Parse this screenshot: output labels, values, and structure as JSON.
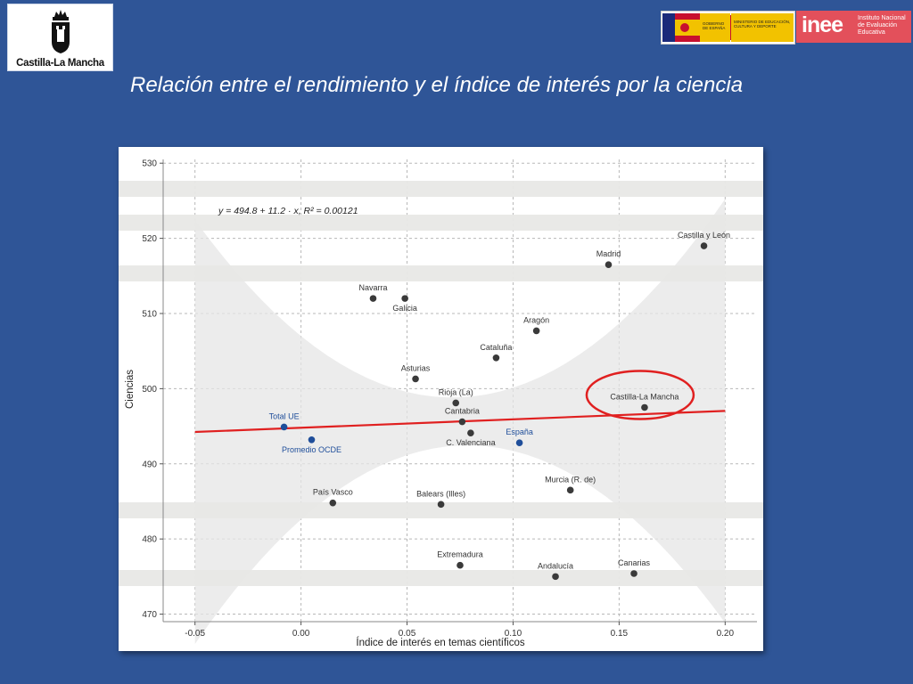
{
  "header": {
    "left_logo_text": "Castilla-La Mancha",
    "ministry_logo_text": [
      "GOBIERNO DE ESPAÑA",
      "MINISTERIO DE EDUCACIÓN, CULTURA Y DEPORTE"
    ],
    "inee_logo_letters": "inee",
    "inee_logo_text": [
      "Instituto Nacional",
      "de Evaluación",
      "Educativa"
    ]
  },
  "slide_title": "Relación entre el rendimiento y el índice de interés por la ciencia",
  "colors": {
    "background": "#2f5597",
    "regression_line": "#e02020",
    "point_region": "#3a3a3a",
    "point_aggregate": "#1f4e9a",
    "highlight_circle": "#e02020",
    "confidence_band": "#e5e5e5"
  },
  "chart_data": {
    "type": "scatter",
    "equation_label": "y = 494.8 + 11.2 · x,  R² = 0.00121",
    "xlabel": "Índice de interés en temas científicos",
    "ylabel": "Ciencias",
    "xlim": [
      -0.065,
      0.215
    ],
    "ylim": [
      469,
      530.5
    ],
    "xticks": [
      -0.05,
      0.0,
      0.05,
      0.1,
      0.15,
      0.2
    ],
    "xtick_labels": [
      "-0.05",
      "0.00",
      "0.05",
      "0.10",
      "0.15",
      "0.20"
    ],
    "yticks": [
      470,
      480,
      490,
      500,
      510,
      520,
      530
    ],
    "ytick_labels": [
      "470",
      "480",
      "490",
      "500",
      "510",
      "520",
      "530"
    ],
    "grid": true,
    "regression": {
      "intercept": 494.8,
      "slope": 11.2,
      "x_from": -0.05,
      "x_to": 0.2
    },
    "highlight": "Castilla-La Mancha",
    "points": [
      {
        "label": "Castilla y León",
        "x": 0.19,
        "y": 519.0,
        "group": "region",
        "label_side": "above"
      },
      {
        "label": "Madrid",
        "x": 0.145,
        "y": 516.5,
        "group": "region",
        "label_side": "hidden"
      },
      {
        "label": "Navarra",
        "x": 0.034,
        "y": 512.0,
        "group": "region",
        "label_side": "above"
      },
      {
        "label": "Galicia",
        "x": 0.049,
        "y": 512.0,
        "group": "region",
        "label_side": "below"
      },
      {
        "label": "Aragón",
        "x": 0.111,
        "y": 507.7,
        "group": "region",
        "label_side": "above"
      },
      {
        "label": "Cataluña",
        "x": 0.092,
        "y": 504.1,
        "group": "region",
        "label_side": "above"
      },
      {
        "label": "Asturias",
        "x": 0.054,
        "y": 501.3,
        "group": "region",
        "label_side": "above"
      },
      {
        "label": "Rioja (La)",
        "x": 0.073,
        "y": 498.1,
        "group": "region",
        "label_side": "above"
      },
      {
        "label": "Castilla-La Mancha",
        "x": 0.162,
        "y": 497.5,
        "group": "region",
        "label_side": "above"
      },
      {
        "label": "Cantabria",
        "x": 0.076,
        "y": 495.6,
        "group": "region",
        "label_side": "above"
      },
      {
        "label": "C. Valenciana",
        "x": 0.08,
        "y": 494.1,
        "group": "region",
        "label_side": "below"
      },
      {
        "label": "España",
        "x": 0.103,
        "y": 492.8,
        "group": "aggregate",
        "label_side": "above"
      },
      {
        "label": "Total UE",
        "x": -0.008,
        "y": 494.9,
        "group": "aggregate",
        "label_side": "above"
      },
      {
        "label": "Promedio OCDE",
        "x": 0.005,
        "y": 493.2,
        "group": "aggregate",
        "label_side": "below"
      },
      {
        "label": "Murcia (R. de)",
        "x": 0.127,
        "y": 486.5,
        "group": "region",
        "label_side": "hidden"
      },
      {
        "label": "País Vasco",
        "x": 0.015,
        "y": 484.8,
        "group": "region",
        "label_side": "hidden"
      },
      {
        "label": "Balears (Illes)",
        "x": 0.066,
        "y": 484.6,
        "group": "region",
        "label_side": "above"
      },
      {
        "label": "Extremadura",
        "x": 0.075,
        "y": 476.5,
        "group": "region",
        "label_side": "hidden"
      },
      {
        "label": "Andalucía",
        "x": 0.12,
        "y": 475.0,
        "group": "region",
        "label_side": "hidden"
      },
      {
        "label": "Canarias",
        "x": 0.157,
        "y": 475.4,
        "group": "region",
        "label_side": "above"
      }
    ]
  }
}
